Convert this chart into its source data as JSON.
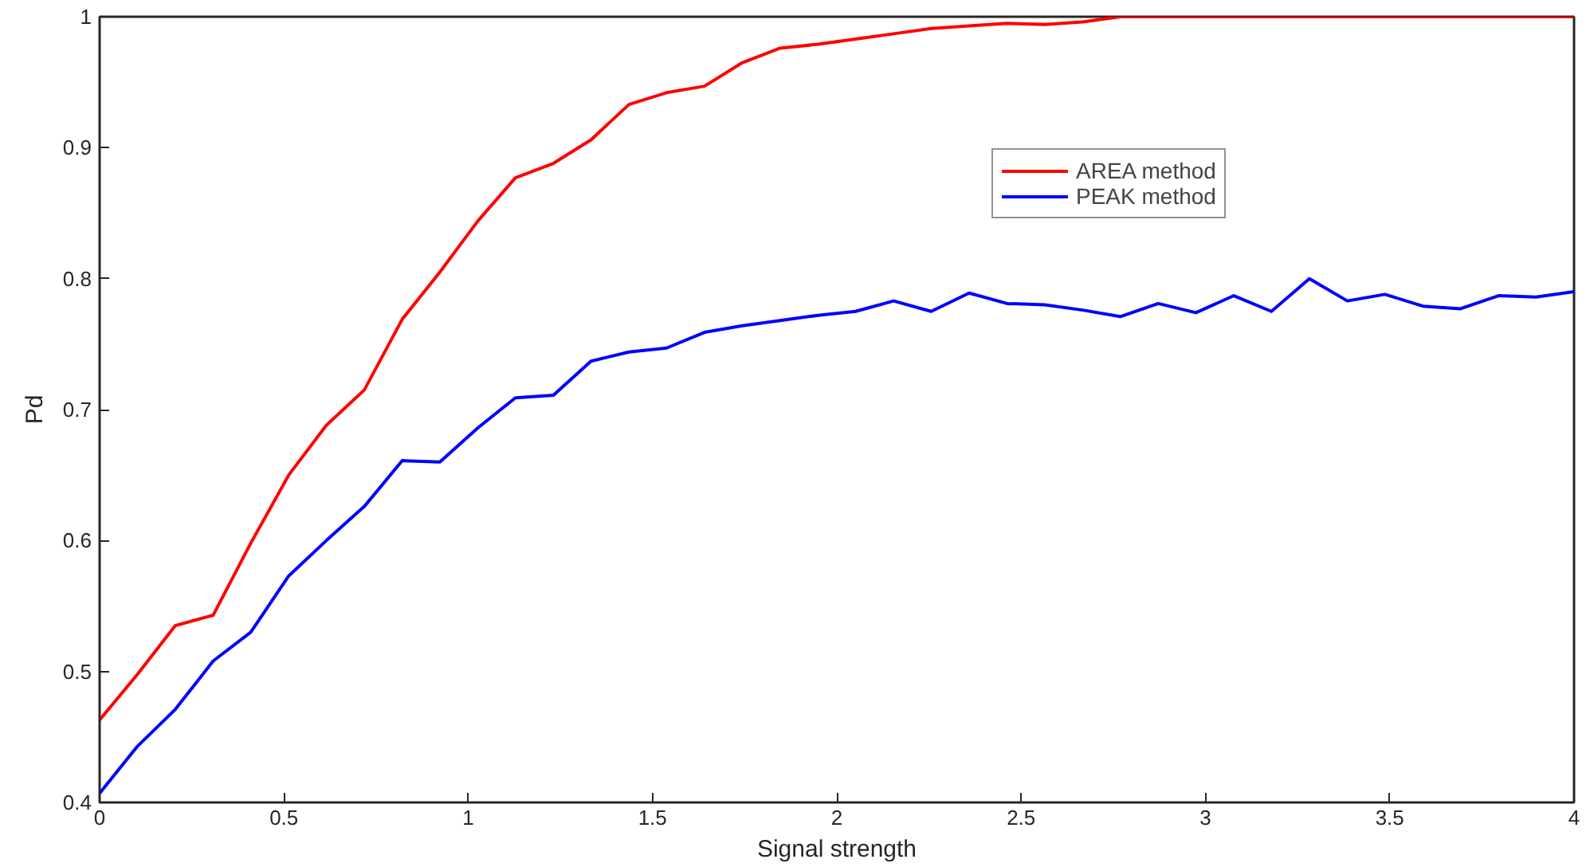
{
  "chart_data": {
    "type": "line",
    "xlabel": "Signal strength",
    "ylabel": "Pd",
    "x": [
      0,
      0.103,
      0.205,
      0.308,
      0.41,
      0.513,
      0.615,
      0.718,
      0.821,
      0.923,
      1.026,
      1.128,
      1.231,
      1.333,
      1.436,
      1.538,
      1.641,
      1.744,
      1.846,
      1.949,
      2.051,
      2.154,
      2.256,
      2.359,
      2.462,
      2.564,
      2.667,
      2.769,
      2.872,
      2.974,
      3.077,
      3.179,
      3.282,
      3.385,
      3.487,
      3.59,
      3.692,
      3.795,
      3.897,
      4
    ],
    "series": [
      {
        "name": "AREA method",
        "color": "#ff0000",
        "values": [
          0.463,
          0.498,
          0.535,
          0.543,
          0.598,
          0.65,
          0.688,
          0.715,
          0.769,
          0.805,
          0.844,
          0.877,
          0.888,
          0.906,
          0.933,
          0.942,
          0.947,
          0.965,
          0.976,
          0.979,
          0.983,
          0.987,
          0.991,
          0.993,
          0.995,
          0.994,
          0.996,
          1.0,
          1.0,
          1.0,
          1.0,
          1.0,
          1.0,
          1.0,
          1.0,
          1.0,
          1.0,
          1.0,
          1.0,
          1.0
        ]
      },
      {
        "name": "PEAK method",
        "color": "#0000ff",
        "values": [
          0.407,
          0.443,
          0.471,
          0.508,
          0.53,
          0.573,
          0.6,
          0.626,
          0.661,
          0.66,
          0.686,
          0.709,
          0.711,
          0.737,
          0.744,
          0.747,
          0.759,
          0.764,
          0.768,
          0.772,
          0.775,
          0.783,
          0.775,
          0.789,
          0.781,
          0.78,
          0.776,
          0.771,
          0.781,
          0.774,
          0.787,
          0.775,
          0.8,
          0.783,
          0.788,
          0.779,
          0.777,
          0.787,
          0.786,
          0.79
        ]
      }
    ],
    "xlim": [
      0,
      4
    ],
    "xticks": [
      0,
      0.5,
      1,
      1.5,
      2,
      2.5,
      3,
      3.5,
      4
    ],
    "ylim": [
      0.4,
      1
    ],
    "yticks": [
      0.4,
      0.5,
      0.6,
      0.7,
      0.8,
      0.9,
      1
    ],
    "grid": false,
    "legend": "top right",
    "marker": "none",
    "line_style": "solid"
  }
}
